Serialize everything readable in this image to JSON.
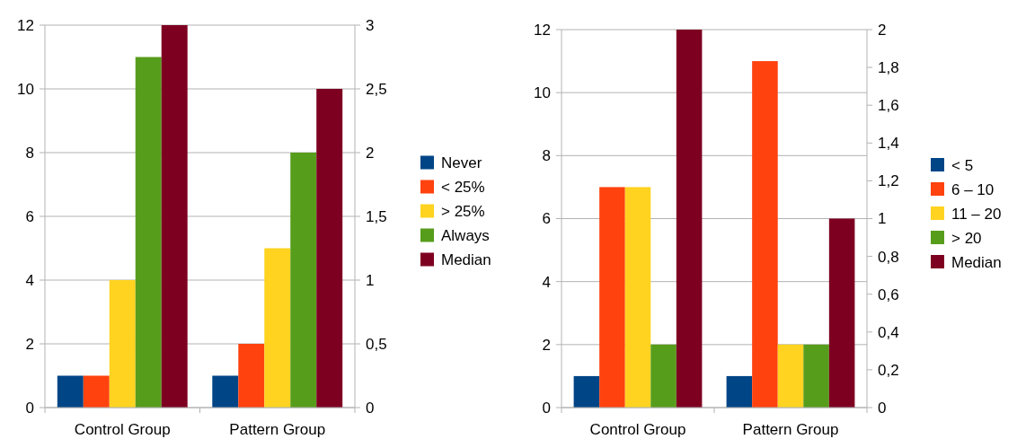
{
  "chart_data": [
    {
      "type": "bar",
      "categories": [
        "Control Group",
        "Pattern Group"
      ],
      "series": [
        {
          "name": "Never",
          "color": "#004586",
          "values": [
            1,
            1
          ]
        },
        {
          "name": "< 25%",
          "color": "#ff420e",
          "values": [
            1,
            2
          ]
        },
        {
          "name": "> 25%",
          "color": "#ffd320",
          "values": [
            4,
            5
          ]
        },
        {
          "name": "Always",
          "color": "#579d1c",
          "values": [
            11,
            8
          ]
        },
        {
          "name": "Median",
          "color": "#7e0021",
          "values": [
            3,
            2.5
          ],
          "axis": "y2"
        }
      ],
      "ylim": [
        0,
        12
      ],
      "yticks": [
        0,
        2,
        4,
        6,
        8,
        10,
        12
      ],
      "y2lim": [
        0,
        3
      ],
      "y2ticks": [
        0,
        {
          "value": 0.5,
          "label": "0,5"
        },
        1,
        {
          "value": 1.5,
          "label": "1,5"
        },
        2,
        {
          "value": 2.5,
          "label": "2,5"
        },
        3
      ],
      "grid": "y",
      "legend": "right"
    },
    {
      "type": "bar",
      "categories": [
        "Control Group",
        "Pattern Group"
      ],
      "series": [
        {
          "name": "< 5",
          "color": "#004586",
          "values": [
            1,
            1
          ]
        },
        {
          "name": "6 – 10",
          "color": "#ff420e",
          "values": [
            7,
            11
          ]
        },
        {
          "name": "11 – 20",
          "color": "#ffd320",
          "values": [
            7,
            2
          ]
        },
        {
          "name": "> 20",
          "color": "#579d1c",
          "values": [
            2,
            2
          ]
        },
        {
          "name": "Median",
          "color": "#7e0021",
          "values": [
            2,
            1
          ],
          "axis": "y2"
        }
      ],
      "ylim": [
        0,
        12
      ],
      "yticks": [
        0,
        2,
        4,
        6,
        8,
        10,
        12
      ],
      "y2lim": [
        0,
        2
      ],
      "y2ticks": [
        0,
        {
          "value": 0.2,
          "label": "0,2"
        },
        {
          "value": 0.4,
          "label": "0,4"
        },
        {
          "value": 0.6,
          "label": "0,6"
        },
        {
          "value": 0.8,
          "label": "0,8"
        },
        1,
        {
          "value": 1.2,
          "label": "1,2"
        },
        {
          "value": 1.4,
          "label": "1,4"
        },
        {
          "value": 1.6,
          "label": "1,6"
        },
        {
          "value": 1.8,
          "label": "1,8"
        },
        2
      ],
      "grid": "y",
      "legend": "right"
    }
  ]
}
